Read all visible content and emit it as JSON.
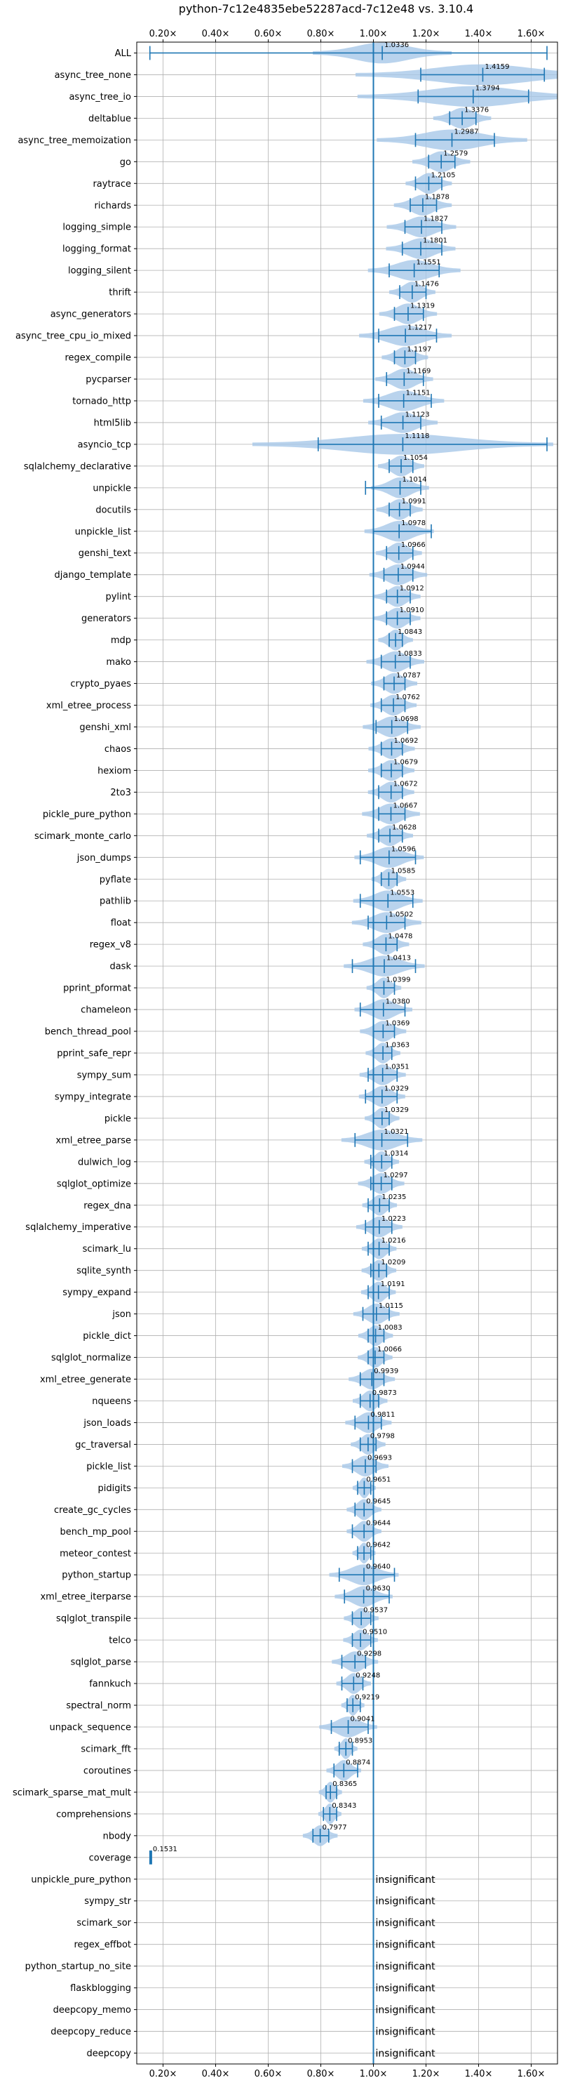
{
  "chart_data": {
    "type": "violin",
    "title": "python-7c12e4835ebe52287acd-7c12e48 vs. 3.10.4",
    "x_ticks": [
      "0.20×",
      "0.40×",
      "0.60×",
      "0.80×",
      "1.00×",
      "1.20×",
      "1.40×",
      "1.60×"
    ],
    "x_tick_values": [
      0.2,
      0.4,
      0.6,
      0.8,
      1.0,
      1.2,
      1.4,
      1.6
    ],
    "xlim": [
      0.1,
      1.7
    ],
    "reference_line": 1.0,
    "grid": true,
    "insignificant_label": "insignificant",
    "colors": {
      "violin": "#a8c8e8",
      "line": "#1f77b4"
    },
    "benchmarks": [
      {
        "name": "ALL",
        "value": 1.0336,
        "label": "1.0336",
        "min": 0.15,
        "max": 1.66,
        "spread": 0.12
      },
      {
        "name": "async_tree_none",
        "value": 1.4159,
        "label": "1.4159",
        "min": 1.18,
        "max": 1.65,
        "spread": 0.22
      },
      {
        "name": "async_tree_io",
        "value": 1.3794,
        "label": "1.3794",
        "min": 1.17,
        "max": 1.59,
        "spread": 0.2
      },
      {
        "name": "deltablue",
        "value": 1.3376,
        "label": "1.3376",
        "min": 1.29,
        "max": 1.39,
        "spread": 0.05
      },
      {
        "name": "async_tree_memoization",
        "value": 1.2987,
        "label": "1.2987",
        "min": 1.16,
        "max": 1.46,
        "spread": 0.13
      },
      {
        "name": "go",
        "value": 1.2579,
        "label": "1.2579",
        "min": 1.21,
        "max": 1.31,
        "spread": 0.05
      },
      {
        "name": "raytrace",
        "value": 1.2105,
        "label": "1.2105",
        "min": 1.16,
        "max": 1.26,
        "spread": 0.04
      },
      {
        "name": "richards",
        "value": 1.1878,
        "label": "1.1878",
        "min": 1.14,
        "max": 1.24,
        "spread": 0.05
      },
      {
        "name": "logging_simple",
        "value": 1.1827,
        "label": "1.1827",
        "min": 1.12,
        "max": 1.26,
        "spread": 0.06
      },
      {
        "name": "logging_format",
        "value": 1.1801,
        "label": "1.1801",
        "min": 1.11,
        "max": 1.26,
        "spread": 0.06
      },
      {
        "name": "logging_silent",
        "value": 1.1551,
        "label": "1.1551",
        "min": 1.06,
        "max": 1.25,
        "spread": 0.08
      },
      {
        "name": "thrift",
        "value": 1.1476,
        "label": "1.1476",
        "min": 1.1,
        "max": 1.2,
        "spread": 0.04
      },
      {
        "name": "async_generators",
        "value": 1.1319,
        "label": "1.1319",
        "min": 1.08,
        "max": 1.19,
        "spread": 0.05
      },
      {
        "name": "async_tree_cpu_io_mixed",
        "value": 1.1217,
        "label": "1.1217",
        "min": 1.02,
        "max": 1.24,
        "spread": 0.08
      },
      {
        "name": "regex_compile",
        "value": 1.1197,
        "label": "1.1197",
        "min": 1.08,
        "max": 1.16,
        "spread": 0.04
      },
      {
        "name": "pycparser",
        "value": 1.1169,
        "label": "1.1169",
        "min": 1.05,
        "max": 1.19,
        "spread": 0.05
      },
      {
        "name": "tornado_http",
        "value": 1.1151,
        "label": "1.1151",
        "min": 1.02,
        "max": 1.22,
        "spread": 0.07
      },
      {
        "name": "html5lib",
        "value": 1.1123,
        "label": "1.1123",
        "min": 1.03,
        "max": 1.18,
        "spread": 0.06
      },
      {
        "name": "asyncio_tcp",
        "value": 1.1118,
        "label": "1.1118",
        "min": 0.79,
        "max": 1.66,
        "spread": 0.26
      },
      {
        "name": "sqlalchemy_declarative",
        "value": 1.1054,
        "label": "1.1054",
        "min": 1.06,
        "max": 1.15,
        "spread": 0.04
      },
      {
        "name": "unpickle",
        "value": 1.1014,
        "label": "1.1014",
        "min": 0.97,
        "max": 1.18,
        "spread": 0.05
      },
      {
        "name": "docutils",
        "value": 1.0991,
        "label": "1.0991",
        "min": 1.06,
        "max": 1.14,
        "spread": 0.04
      },
      {
        "name": "unpickle_list",
        "value": 1.0978,
        "label": "1.0978",
        "min": 1.0,
        "max": 1.22,
        "spread": 0.06
      },
      {
        "name": "genshi_text",
        "value": 1.0966,
        "label": "1.0966",
        "min": 1.05,
        "max": 1.15,
        "spread": 0.04
      },
      {
        "name": "django_template",
        "value": 1.0944,
        "label": "1.0944",
        "min": 1.04,
        "max": 1.15,
        "spread": 0.05
      },
      {
        "name": "pylint",
        "value": 1.0912,
        "label": "1.0912",
        "min": 1.05,
        "max": 1.14,
        "spread": 0.04
      },
      {
        "name": "generators",
        "value": 1.091,
        "label": "1.0910",
        "min": 1.05,
        "max": 1.14,
        "spread": 0.04
      },
      {
        "name": "mdp",
        "value": 1.0843,
        "label": "1.0843",
        "min": 1.06,
        "max": 1.11,
        "spread": 0.03
      },
      {
        "name": "mako",
        "value": 1.0833,
        "label": "1.0833",
        "min": 1.03,
        "max": 1.14,
        "spread": 0.05
      },
      {
        "name": "crypto_pyaes",
        "value": 1.0787,
        "label": "1.0787",
        "min": 1.04,
        "max": 1.12,
        "spread": 0.04
      },
      {
        "name": "xml_etree_process",
        "value": 1.0762,
        "label": "1.0762",
        "min": 1.03,
        "max": 1.12,
        "spread": 0.04
      },
      {
        "name": "genshi_xml",
        "value": 1.0698,
        "label": "1.0698",
        "min": 1.01,
        "max": 1.13,
        "spread": 0.05
      },
      {
        "name": "chaos",
        "value": 1.0692,
        "label": "1.0692",
        "min": 1.03,
        "max": 1.11,
        "spread": 0.04
      },
      {
        "name": "hexiom",
        "value": 1.0679,
        "label": "1.0679",
        "min": 1.03,
        "max": 1.11,
        "spread": 0.04
      },
      {
        "name": "2to3",
        "value": 1.0672,
        "label": "1.0672",
        "min": 1.02,
        "max": 1.11,
        "spread": 0.04
      },
      {
        "name": "pickle_pure_python",
        "value": 1.0667,
        "label": "1.0667",
        "min": 1.02,
        "max": 1.12,
        "spread": 0.05
      },
      {
        "name": "scimark_monte_carlo",
        "value": 1.0628,
        "label": "1.0628",
        "min": 1.02,
        "max": 1.11,
        "spread": 0.04
      },
      {
        "name": "json_dumps",
        "value": 1.0596,
        "label": "1.0596",
        "min": 0.95,
        "max": 1.16,
        "spread": 0.06
      },
      {
        "name": "pyflate",
        "value": 1.0585,
        "label": "1.0585",
        "min": 1.03,
        "max": 1.09,
        "spread": 0.03
      },
      {
        "name": "pathlib",
        "value": 1.0553,
        "label": "1.0553",
        "min": 0.95,
        "max": 1.15,
        "spread": 0.06
      },
      {
        "name": "float",
        "value": 1.0502,
        "label": "1.0502",
        "min": 0.98,
        "max": 1.12,
        "spread": 0.06
      },
      {
        "name": "regex_v8",
        "value": 1.0478,
        "label": "1.0478",
        "min": 1.0,
        "max": 1.09,
        "spread": 0.04
      },
      {
        "name": "dask",
        "value": 1.0413,
        "label": "1.0413",
        "min": 0.92,
        "max": 1.16,
        "spread": 0.07
      },
      {
        "name": "pprint_pformat",
        "value": 1.0399,
        "label": "1.0399",
        "min": 1.0,
        "max": 1.08,
        "spread": 0.03
      },
      {
        "name": "chameleon",
        "value": 1.038,
        "label": "1.0380",
        "min": 0.95,
        "max": 1.12,
        "spread": 0.05
      },
      {
        "name": "bench_thread_pool",
        "value": 1.0369,
        "label": "1.0369",
        "min": 1.0,
        "max": 1.08,
        "spread": 0.04
      },
      {
        "name": "pprint_safe_repr",
        "value": 1.0363,
        "label": "1.0363",
        "min": 1.0,
        "max": 1.07,
        "spread": 0.03
      },
      {
        "name": "sympy_sum",
        "value": 1.0351,
        "label": "1.0351",
        "min": 0.98,
        "max": 1.09,
        "spread": 0.04
      },
      {
        "name": "sympy_integrate",
        "value": 1.0329,
        "label": "1.0329",
        "min": 0.97,
        "max": 1.09,
        "spread": 0.04
      },
      {
        "name": "pickle",
        "value": 1.0329,
        "label": "1.0329",
        "min": 1.0,
        "max": 1.06,
        "spread": 0.03
      },
      {
        "name": "xml_etree_parse",
        "value": 1.0321,
        "label": "1.0321",
        "min": 0.93,
        "max": 1.13,
        "spread": 0.07
      },
      {
        "name": "dulwich_log",
        "value": 1.0314,
        "label": "1.0314",
        "min": 0.99,
        "max": 1.07,
        "spread": 0.03
      },
      {
        "name": "sqlglot_optimize",
        "value": 1.0297,
        "label": "1.0297",
        "min": 0.99,
        "max": 1.07,
        "spread": 0.04
      },
      {
        "name": "regex_dna",
        "value": 1.0235,
        "label": "1.0235",
        "min": 0.98,
        "max": 1.06,
        "spread": 0.03
      },
      {
        "name": "sqlalchemy_imperative",
        "value": 1.0223,
        "label": "1.0223",
        "min": 0.97,
        "max": 1.07,
        "spread": 0.04
      },
      {
        "name": "scimark_lu",
        "value": 1.0216,
        "label": "1.0216",
        "min": 0.98,
        "max": 1.06,
        "spread": 0.03
      },
      {
        "name": "sqlite_synth",
        "value": 1.0209,
        "label": "1.0209",
        "min": 0.99,
        "max": 1.05,
        "spread": 0.03
      },
      {
        "name": "sympy_expand",
        "value": 1.0191,
        "label": "1.0191",
        "min": 0.98,
        "max": 1.06,
        "spread": 0.03
      },
      {
        "name": "json",
        "value": 1.0115,
        "label": "1.0115",
        "min": 0.96,
        "max": 1.06,
        "spread": 0.04
      },
      {
        "name": "pickle_dict",
        "value": 1.0083,
        "label": "1.0083",
        "min": 0.98,
        "max": 1.04,
        "spread": 0.03
      },
      {
        "name": "sqlglot_normalize",
        "value": 1.0066,
        "label": "1.0066",
        "min": 0.98,
        "max": 1.04,
        "spread": 0.03
      },
      {
        "name": "xml_etree_generate",
        "value": 0.9939,
        "label": "0.9939",
        "min": 0.95,
        "max": 1.04,
        "spread": 0.04
      },
      {
        "name": "nqueens",
        "value": 0.9873,
        "label": "0.9873",
        "min": 0.95,
        "max": 1.02,
        "spread": 0.03
      },
      {
        "name": "json_loads",
        "value": 0.9811,
        "label": "0.9811",
        "min": 0.93,
        "max": 1.03,
        "spread": 0.04
      },
      {
        "name": "gc_traversal",
        "value": 0.9798,
        "label": "0.9798",
        "min": 0.95,
        "max": 1.01,
        "spread": 0.03
      },
      {
        "name": "pickle_list",
        "value": 0.9693,
        "label": "0.9693",
        "min": 0.92,
        "max": 1.01,
        "spread": 0.04
      },
      {
        "name": "pidigits",
        "value": 0.9651,
        "label": "0.9651",
        "min": 0.94,
        "max": 0.99,
        "spread": 0.02
      },
      {
        "name": "create_gc_cycles",
        "value": 0.9645,
        "label": "0.9645",
        "min": 0.93,
        "max": 1.0,
        "spread": 0.03
      },
      {
        "name": "bench_mp_pool",
        "value": 0.9644,
        "label": "0.9644",
        "min": 0.92,
        "max": 1.0,
        "spread": 0.03
      },
      {
        "name": "meteor_contest",
        "value": 0.9642,
        "label": "0.9642",
        "min": 0.94,
        "max": 0.99,
        "spread": 0.02
      },
      {
        "name": "python_startup",
        "value": 0.964,
        "label": "0.9640",
        "min": 0.87,
        "max": 1.08,
        "spread": 0.06
      },
      {
        "name": "xml_etree_iterparse",
        "value": 0.963,
        "label": "0.9630",
        "min": 0.89,
        "max": 1.06,
        "spread": 0.05
      },
      {
        "name": "sqlglot_transpile",
        "value": 0.9537,
        "label": "0.9537",
        "min": 0.92,
        "max": 0.99,
        "spread": 0.03
      },
      {
        "name": "telco",
        "value": 0.951,
        "label": "0.9510",
        "min": 0.92,
        "max": 0.99,
        "spread": 0.03
      },
      {
        "name": "sqlglot_parse",
        "value": 0.9298,
        "label": "0.9298",
        "min": 0.88,
        "max": 0.97,
        "spread": 0.04
      },
      {
        "name": "fannkuch",
        "value": 0.9248,
        "label": "0.9248",
        "min": 0.88,
        "max": 0.96,
        "spread": 0.03
      },
      {
        "name": "spectral_norm",
        "value": 0.9219,
        "label": "0.9219",
        "min": 0.9,
        "max": 0.95,
        "spread": 0.02
      },
      {
        "name": "unpack_sequence",
        "value": 0.9041,
        "label": "0.9041",
        "min": 0.84,
        "max": 0.98,
        "spread": 0.05
      },
      {
        "name": "scimark_fft",
        "value": 0.8953,
        "label": "0.8953",
        "min": 0.87,
        "max": 0.92,
        "spread": 0.02
      },
      {
        "name": "coroutines",
        "value": 0.8874,
        "label": "0.8874",
        "min": 0.85,
        "max": 0.94,
        "spread": 0.03
      },
      {
        "name": "scimark_sparse_mat_mult",
        "value": 0.8365,
        "label": "0.8365",
        "min": 0.82,
        "max": 0.86,
        "spread": 0.02
      },
      {
        "name": "comprehensions",
        "value": 0.8343,
        "label": "0.8343",
        "min": 0.81,
        "max": 0.86,
        "spread": 0.02
      },
      {
        "name": "nbody",
        "value": 0.7977,
        "label": "0.7977",
        "min": 0.77,
        "max": 0.83,
        "spread": 0.03
      },
      {
        "name": "coverage",
        "value": 0.1531,
        "label": "0.1531",
        "min": 0.15,
        "max": 0.16,
        "spread": 0.005
      },
      {
        "name": "unpickle_pure_python",
        "insignificant": true
      },
      {
        "name": "sympy_str",
        "insignificant": true
      },
      {
        "name": "scimark_sor",
        "insignificant": true
      },
      {
        "name": "regex_effbot",
        "insignificant": true
      },
      {
        "name": "python_startup_no_site",
        "insignificant": true
      },
      {
        "name": "flaskblogging",
        "insignificant": true
      },
      {
        "name": "deepcopy_memo",
        "insignificant": true
      },
      {
        "name": "deepcopy_reduce",
        "insignificant": true
      },
      {
        "name": "deepcopy",
        "insignificant": true
      }
    ]
  }
}
